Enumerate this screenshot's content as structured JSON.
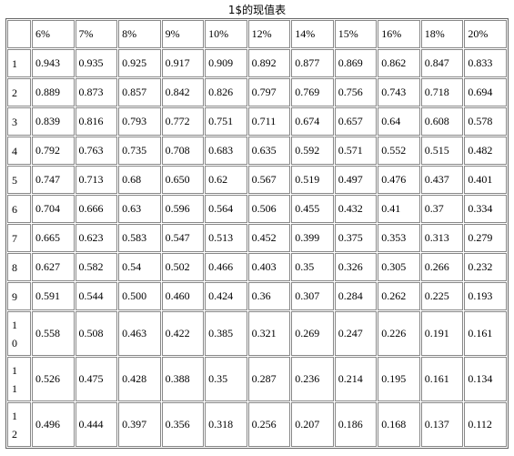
{
  "title": "1$的现值表",
  "table": {
    "columns": [
      "6%",
      "7%",
      "8%",
      "9%",
      "10%",
      "12%",
      "14%",
      "15%",
      "16%",
      "18%",
      "20%"
    ],
    "rows": [
      {
        "label": "1",
        "values": [
          "0.943",
          "0.935",
          "0.925",
          "0.917",
          "0.909",
          "0.892",
          "0.877",
          "0.869",
          "0.862",
          "0.847",
          "0.833"
        ]
      },
      {
        "label": "2",
        "values": [
          "0.889",
          "0.873",
          "0.857",
          "0.842",
          "0.826",
          "0.797",
          "0.769",
          "0.756",
          "0.743",
          "0.718",
          "0.694"
        ]
      },
      {
        "label": "3",
        "values": [
          "0.839",
          "0.816",
          "0.793",
          "0.772",
          "0.751",
          "0.711",
          "0.674",
          "0.657",
          "0.64",
          "0.608",
          "0.578"
        ]
      },
      {
        "label": "4",
        "values": [
          "0.792",
          "0.763",
          "0.735",
          "0.708",
          "0.683",
          "0.635",
          "0.592",
          "0.571",
          "0.552",
          "0.515",
          "0.482"
        ]
      },
      {
        "label": "5",
        "values": [
          "0.747",
          "0.713",
          "0.68",
          "0.650",
          "0.62",
          "0.567",
          "0.519",
          "0.497",
          "0.476",
          "0.437",
          "0.401"
        ]
      },
      {
        "label": "6",
        "values": [
          "0.704",
          "0.666",
          "0.63",
          "0.596",
          "0.564",
          "0.506",
          "0.455",
          "0.432",
          "0.41",
          "0.37",
          "0.334"
        ]
      },
      {
        "label": "7",
        "values": [
          "0.665",
          "0.623",
          "0.583",
          "0.547",
          "0.513",
          "0.452",
          "0.399",
          "0.375",
          "0.353",
          "0.313",
          "0.279"
        ]
      },
      {
        "label": "8",
        "values": [
          "0.627",
          "0.582",
          "0.54",
          "0.502",
          "0.466",
          "0.403",
          "0.35",
          "0.326",
          "0.305",
          "0.266",
          "0.232"
        ]
      },
      {
        "label": "9",
        "values": [
          "0.591",
          "0.544",
          "0.500",
          "0.460",
          "0.424",
          "0.36",
          "0.307",
          "0.284",
          "0.262",
          "0.225",
          "0.193"
        ]
      },
      {
        "label": "10",
        "values": [
          "0.558",
          "0.508",
          "0.463",
          "0.422",
          "0.385",
          "0.321",
          "0.269",
          "0.247",
          "0.226",
          "0.191",
          "0.161"
        ]
      },
      {
        "label": "11",
        "values": [
          "0.526",
          "0.475",
          "0.428",
          "0.388",
          "0.35",
          "0.287",
          "0.236",
          "0.214",
          "0.195",
          "0.161",
          "0.134"
        ]
      },
      {
        "label": "12",
        "values": [
          "0.496",
          "0.444",
          "0.397",
          "0.356",
          "0.318",
          "0.256",
          "0.207",
          "0.186",
          "0.168",
          "0.137",
          "0.112"
        ]
      }
    ]
  }
}
